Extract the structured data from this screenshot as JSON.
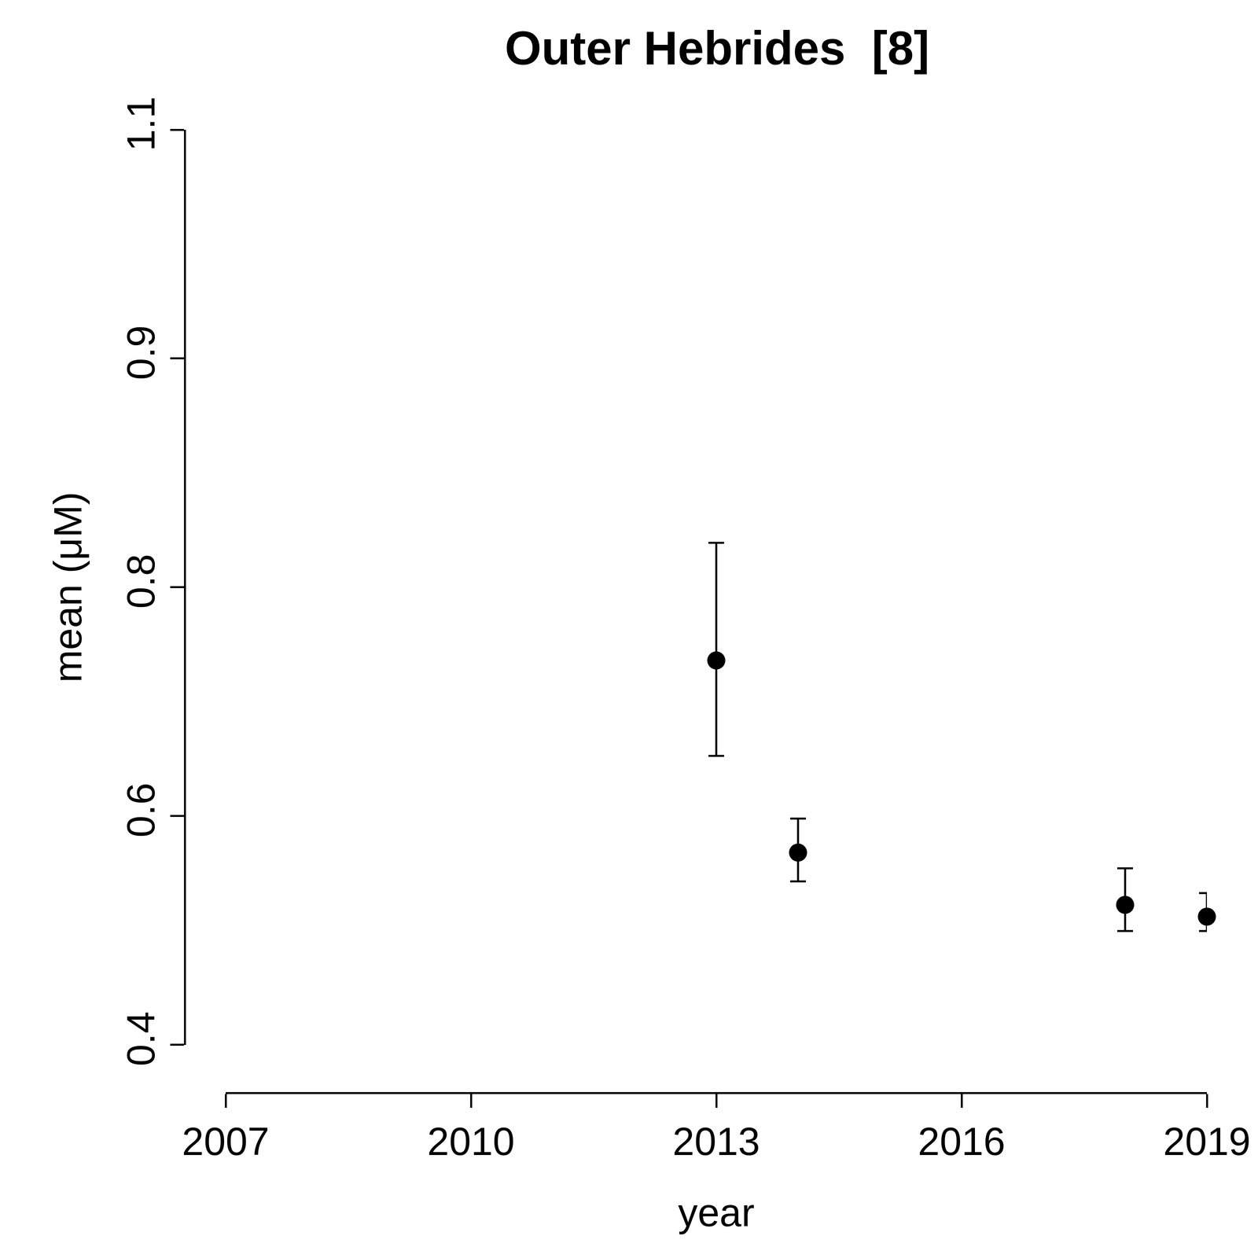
{
  "chart_data": {
    "type": "scatter",
    "title": "Outer Hebrides  [8]",
    "x_label": "year",
    "y_label": "mean (μM)",
    "x": [
      2013,
      2014,
      2018,
      2019
    ],
    "values": [
      0.694,
      0.547,
      0.507,
      0.498
    ],
    "error_plus": [
      0.09,
      0.026,
      0.028,
      0.018
    ],
    "error_minus": [
      0.073,
      0.022,
      0.02,
      0.011
    ],
    "xlim": [
      2007,
      2019
    ],
    "xticks": [
      2007,
      2010,
      2013,
      2016,
      2019
    ],
    "ylim": [
      0.4,
      1.1
    ],
    "yticks": [
      0.4,
      {
        "value": 0.575,
        "label": "0.6"
      },
      {
        "value": 0.75,
        "label": "0.8"
      },
      {
        "value": 0.925,
        "label": "0.9"
      },
      1.1
    ],
    "color": "#000000",
    "marker": "circle",
    "grid": false
  }
}
